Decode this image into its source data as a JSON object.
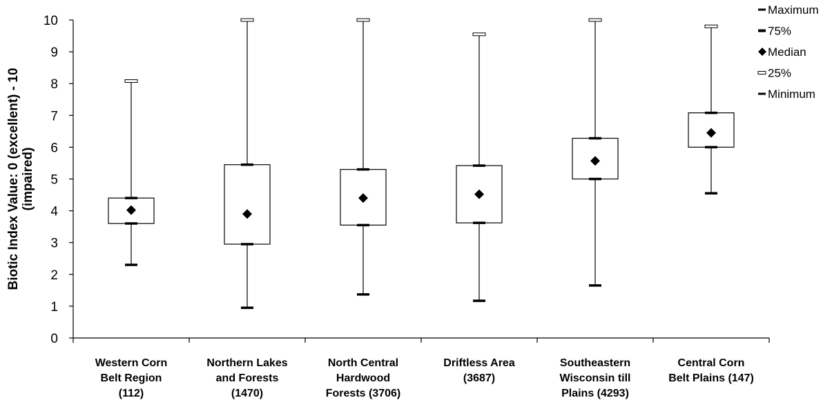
{
  "chart_data": {
    "type": "box",
    "title": "",
    "xlabel": "",
    "ylabel_lines": [
      "Biotic Index Value: 0 (excellent) - 10",
      "(impaired)"
    ],
    "ylim": [
      0,
      10
    ],
    "yticks": [
      "0",
      "1",
      "2",
      "3",
      "4",
      "5",
      "6",
      "7",
      "8",
      "9",
      "10"
    ],
    "grid": false,
    "legend_position": "top-right",
    "legend": [
      {
        "label": "Maximum",
        "marker": "dash"
      },
      {
        "label": "75%",
        "marker": "dash-bold"
      },
      {
        "label": "Median",
        "marker": "diamond"
      },
      {
        "label": "25%",
        "marker": "open-dash"
      },
      {
        "label": "Minimum",
        "marker": "dash"
      }
    ],
    "categories": [
      {
        "lines": [
          "Western Corn",
          "Belt Region",
          "(112)"
        ],
        "min": 2.3,
        "q1": 3.6,
        "median": 4.02,
        "q3": 4.4,
        "max": 8.08
      },
      {
        "lines": [
          "Northern Lakes",
          "and Forests",
          "(1470)"
        ],
        "min": 0.95,
        "q1": 2.95,
        "median": 3.9,
        "q3": 5.45,
        "max": 10.0
      },
      {
        "lines": [
          "North Central",
          "Hardwood",
          "Forests (3706)"
        ],
        "min": 1.37,
        "q1": 3.55,
        "median": 4.4,
        "q3": 5.3,
        "max": 10.0
      },
      {
        "lines": [
          "Driftless Area",
          "(3687)"
        ],
        "min": 1.17,
        "q1": 3.62,
        "median": 4.52,
        "q3": 5.42,
        "max": 9.55
      },
      {
        "lines": [
          "Southeastern",
          "Wisconsin till",
          "Plains (4293)"
        ],
        "min": 1.65,
        "q1": 5.0,
        "median": 5.57,
        "q3": 6.28,
        "max": 10.0
      },
      {
        "lines": [
          "Central Corn",
          "Belt Plains (147)"
        ],
        "min": 4.55,
        "q1": 6.0,
        "median": 6.45,
        "q3": 7.08,
        "max": 9.8
      }
    ]
  }
}
